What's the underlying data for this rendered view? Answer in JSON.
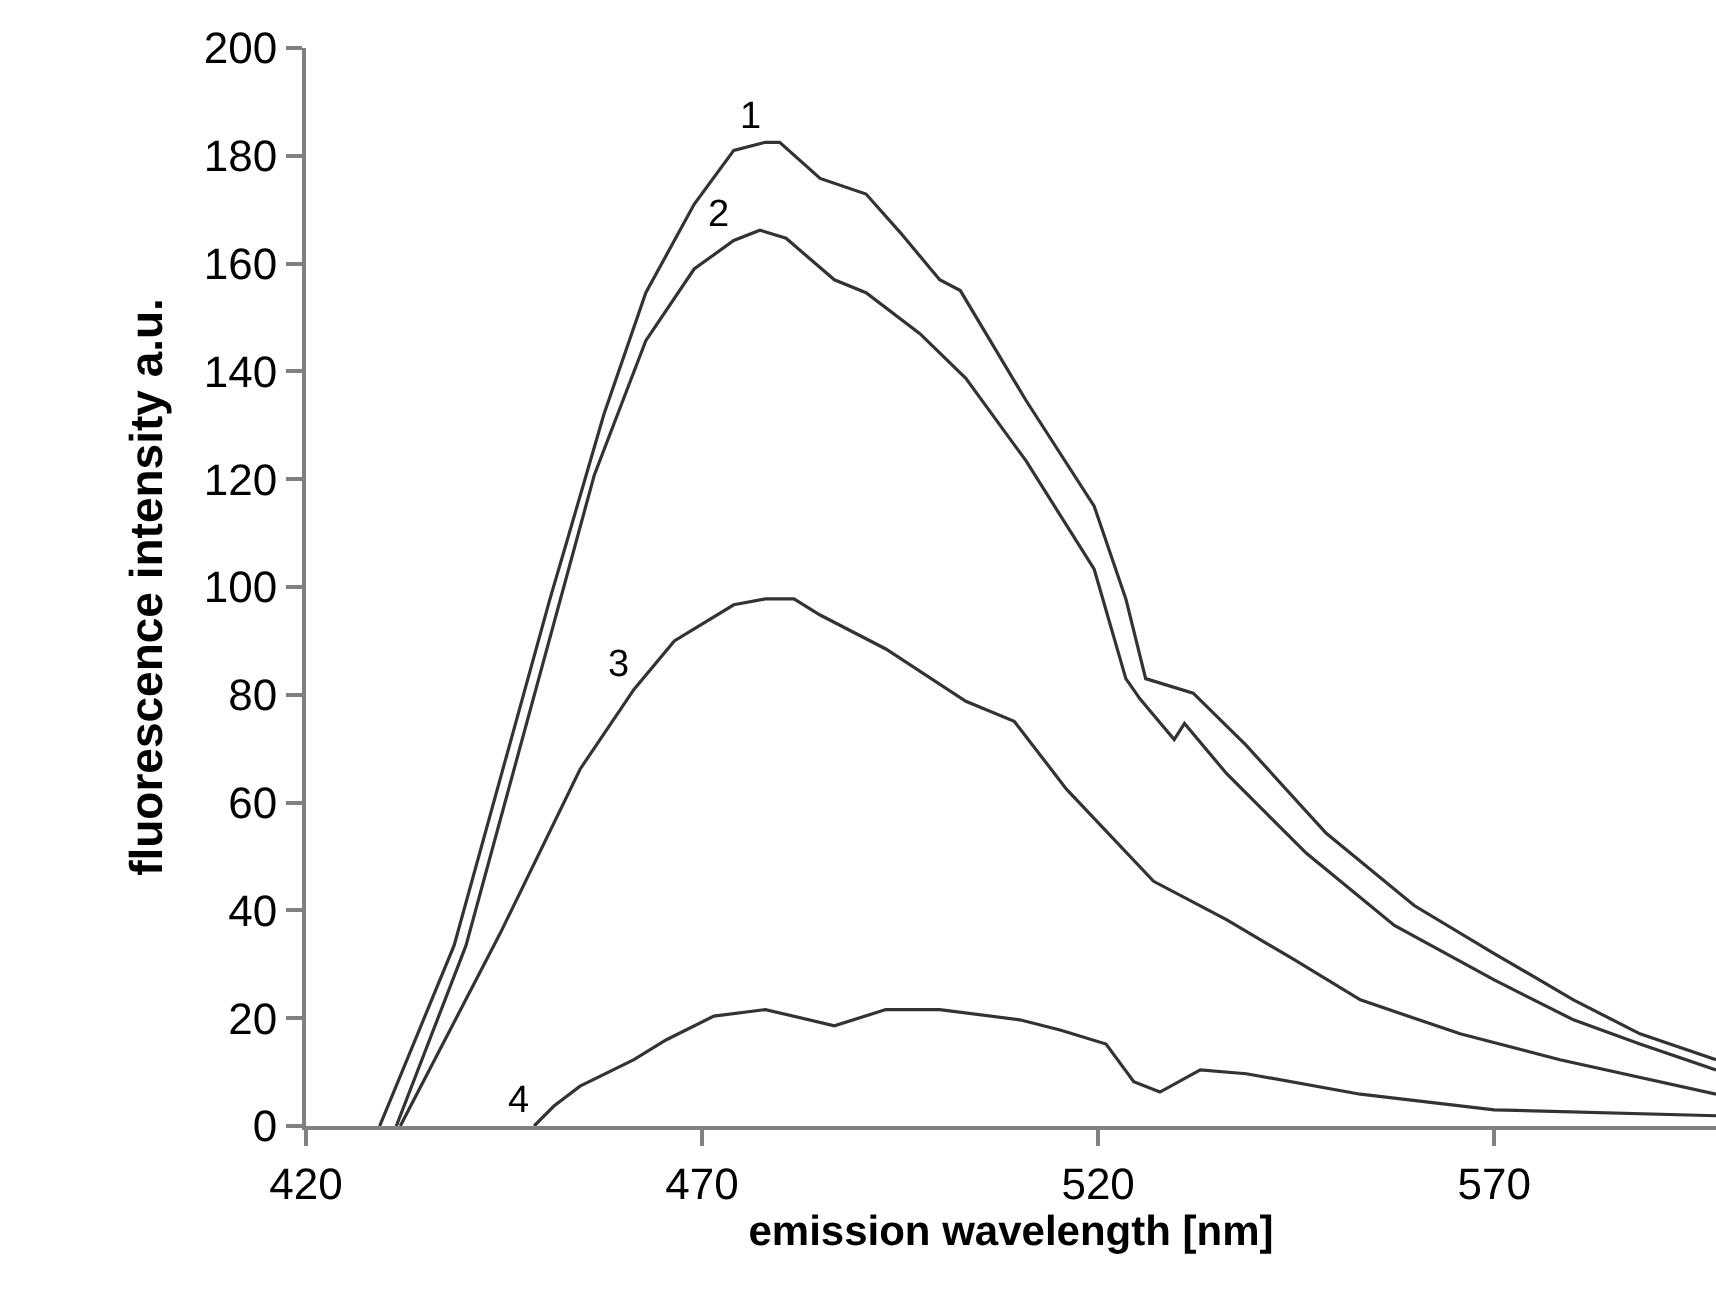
{
  "chart_data": {
    "type": "line",
    "xlabel": "emission wavelength [nm]",
    "ylabel": "fluorescence intensity a.u.",
    "xlim": [
      420,
      598
    ],
    "xticks": [
      420,
      470,
      520,
      570
    ],
    "ylim": [
      0,
      200
    ],
    "yticks": [
      0,
      20,
      40,
      60,
      80,
      100,
      120,
      140,
      160,
      180,
      200
    ],
    "grid": false,
    "marker": "none",
    "line_style": "solid",
    "series": [
      {
        "color": "#333333",
        "x": [
          429.3,
          438.7,
          450.8,
          452.8,
          457.6,
          462.9,
          469,
          474,
          478,
          479.8,
          484.9,
          490.7,
          495,
          500,
          502.6,
          510.9,
          519.5,
          523.5,
          526,
          532,
          538.7,
          548.8,
          559.9,
          570,
          580,
          588.4,
          598
        ],
        "values": [
          0,
          33.5,
          97.8,
          107.8,
          132,
          154.6,
          171,
          181,
          182.5,
          182.5,
          175.8,
          172.9,
          165.8,
          157,
          155,
          134.6,
          115,
          97.8,
          83,
          80.3,
          70.6,
          54.3,
          40.9,
          32,
          23.4,
          17.1,
          12.3
        ]
      },
      {
        "color": "#333333",
        "x": [
          431.4,
          440.2,
          456.4,
          462.9,
          469,
          474,
          477.3,
          480.6,
          486.7,
          490.7,
          497.5,
          503.3,
          510.9,
          519.5,
          523.5,
          525.3,
          529.6,
          530.9,
          536.2,
          546.3,
          557.4,
          570,
          580,
          588.4,
          598
        ],
        "values": [
          0,
          33.5,
          120.8,
          145.7,
          159,
          164.3,
          166.2,
          164.7,
          157,
          154.6,
          147,
          138.7,
          123.4,
          103.3,
          83,
          79.2,
          71.7,
          74.7,
          65.4,
          50.6,
          37.2,
          27.1,
          19.7,
          15.2,
          10.4
        ]
      },
      {
        "color": "#333333",
        "x": [
          431.9,
          444.5,
          454.6,
          461.4,
          466.5,
          474,
          478,
          481.6,
          484.9,
          493.2,
          503.3,
          509.4,
          516,
          527,
          536.2,
          544.7,
          553.1,
          565.7,
          578.3,
          598
        ],
        "values": [
          0,
          35.7,
          66.2,
          81,
          90,
          96.7,
          97.8,
          97.8,
          94.8,
          88.5,
          78.8,
          75.1,
          62.5,
          45.4,
          38.3,
          30.9,
          23.4,
          17.1,
          12.3,
          5.9
        ]
      },
      {
        "color": "#333333",
        "x": [
          448.8,
          451.3,
          454.6,
          461.4,
          465.5,
          471.5,
          478,
          486.7,
          493.2,
          500,
          510.1,
          515.2,
          521,
          524.5,
          527.8,
          532.9,
          538.7,
          553.1,
          570,
          598
        ],
        "values": [
          0,
          3.7,
          7.4,
          12.3,
          16,
          20.4,
          21.6,
          18.6,
          21.6,
          21.6,
          19.7,
          17.8,
          15.2,
          8.2,
          6.3,
          10.4,
          9.7,
          5.9,
          3,
          1.9
        ]
      }
    ],
    "annotations": [
      {
        "text": "1",
        "x": 478,
        "y": 182.5
      },
      {
        "text": "2",
        "x": 474,
        "y": 164.3
      },
      {
        "text": "3",
        "x": 461.4,
        "y": 81
      },
      {
        "text": "4",
        "x": 448.8,
        "y": 0
      }
    ]
  }
}
